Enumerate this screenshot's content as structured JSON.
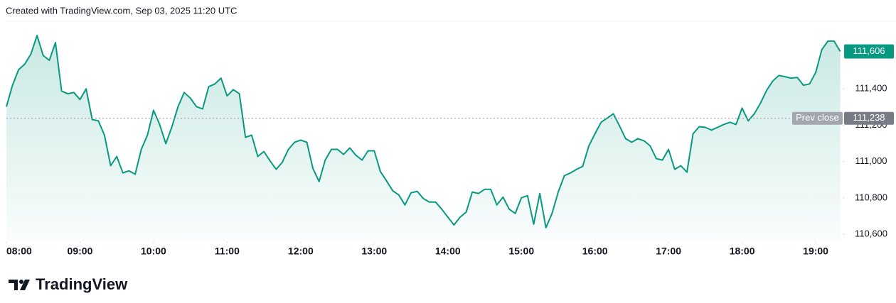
{
  "header": {
    "text": "Created with TradingView.com, Sep 03, 2025 11:20 UTC"
  },
  "chart_data": {
    "type": "area",
    "color": "#089981",
    "x": [
      "08:00",
      "08:05",
      "08:10",
      "08:15",
      "08:20",
      "08:25",
      "08:30",
      "08:35",
      "08:40",
      "08:45",
      "08:50",
      "08:55",
      "09:00",
      "09:05",
      "09:10",
      "09:15",
      "09:20",
      "09:25",
      "09:30",
      "09:35",
      "09:40",
      "09:45",
      "09:50",
      "09:55",
      "10:00",
      "10:05",
      "10:10",
      "10:15",
      "10:20",
      "10:25",
      "10:30",
      "10:35",
      "10:40",
      "10:45",
      "10:50",
      "10:55",
      "11:00",
      "11:05",
      "11:10",
      "11:15",
      "11:20",
      "11:25",
      "11:30",
      "11:35",
      "11:40",
      "11:45",
      "11:50",
      "11:55",
      "12:00",
      "12:05",
      "12:10",
      "12:15",
      "12:20",
      "12:25",
      "12:30",
      "12:35",
      "12:40",
      "12:45",
      "12:50",
      "12:55",
      "13:00",
      "13:05",
      "13:10",
      "13:15",
      "13:20",
      "13:25",
      "13:30",
      "13:35",
      "13:40",
      "13:45",
      "13:50",
      "13:55",
      "14:00",
      "14:05",
      "14:10",
      "14:15",
      "14:20",
      "14:25",
      "14:30",
      "14:35",
      "14:40",
      "14:45",
      "14:50",
      "14:55",
      "15:00",
      "15:05",
      "15:10",
      "15:15",
      "15:20",
      "15:25",
      "15:30",
      "15:35",
      "15:40",
      "15:45",
      "15:50",
      "15:55",
      "16:00",
      "16:05",
      "16:10",
      "16:15",
      "16:20",
      "16:25",
      "16:30",
      "16:35",
      "16:40",
      "16:45",
      "16:50",
      "16:55",
      "17:00",
      "17:05",
      "17:10",
      "17:15",
      "17:20",
      "17:25",
      "17:30",
      "17:35",
      "17:40",
      "17:45",
      "17:50",
      "17:55",
      "18:00",
      "18:05",
      "18:10",
      "18:15",
      "18:20",
      "18:25",
      "18:30",
      "18:35",
      "18:40",
      "18:45",
      "18:50",
      "18:55",
      "19:00",
      "19:05",
      "19:10",
      "19:15",
      "19:20"
    ],
    "values": [
      111302,
      111420,
      111506,
      111537,
      111592,
      111694,
      111584,
      111557,
      111655,
      111388,
      111373,
      111380,
      111341,
      111400,
      111231,
      111224,
      111145,
      110977,
      111028,
      110937,
      110949,
      110930,
      111067,
      111145,
      111282,
      111204,
      111098,
      111192,
      111302,
      111380,
      111349,
      111302,
      111290,
      111412,
      111427,
      111459,
      111361,
      111396,
      111373,
      111133,
      111145,
      111028,
      111055,
      111004,
      110957,
      110996,
      111067,
      111106,
      111118,
      111106,
      110961,
      110890,
      111008,
      111067,
      111067,
      111039,
      111075,
      111035,
      111008,
      111059,
      111059,
      110945,
      110894,
      110839,
      110816,
      110761,
      110828,
      110836,
      110796,
      110777,
      110777,
      110738,
      110694,
      110651,
      110694,
      110722,
      110832,
      110824,
      110847,
      110847,
      110761,
      110804,
      110738,
      110714,
      110800,
      110812,
      110655,
      110824,
      110636,
      110714,
      110832,
      110922,
      110937,
      110957,
      110973,
      111086,
      111153,
      111216,
      111239,
      111263,
      111196,
      111126,
      111106,
      111126,
      111114,
      111086,
      111016,
      111008,
      111067,
      110957,
      110977,
      110941,
      111153,
      111192,
      111188,
      111173,
      111188,
      111204,
      111216,
      111204,
      111294,
      111224,
      111263,
      111322,
      111392,
      111443,
      111474,
      111467,
      111459,
      111463,
      111420,
      111427,
      111490,
      111616,
      111663,
      111663,
      111606
    ],
    "xlim": [
      "08:00",
      "19:22"
    ],
    "xticks": [
      "08:00",
      "09:00",
      "10:00",
      "11:00",
      "12:00",
      "13:00",
      "14:00",
      "15:00",
      "16:00",
      "17:00",
      "18:00",
      "19:00"
    ],
    "ylim": [
      110561,
      111772
    ],
    "yticks": [
      {
        "value": 110600,
        "label": "110,600"
      },
      {
        "value": 110800,
        "label": "110,800"
      },
      {
        "value": 111000,
        "label": "111,000"
      },
      {
        "value": 111200,
        "label": "111,200"
      },
      {
        "value": 111400,
        "label": "111,400"
      }
    ],
    "last_price": {
      "value": 111606,
      "label": "111,606"
    },
    "prev_close": {
      "text": "Prev close",
      "value": 111238,
      "label": "111,238"
    }
  },
  "footer": {
    "brand": "TradingView"
  }
}
